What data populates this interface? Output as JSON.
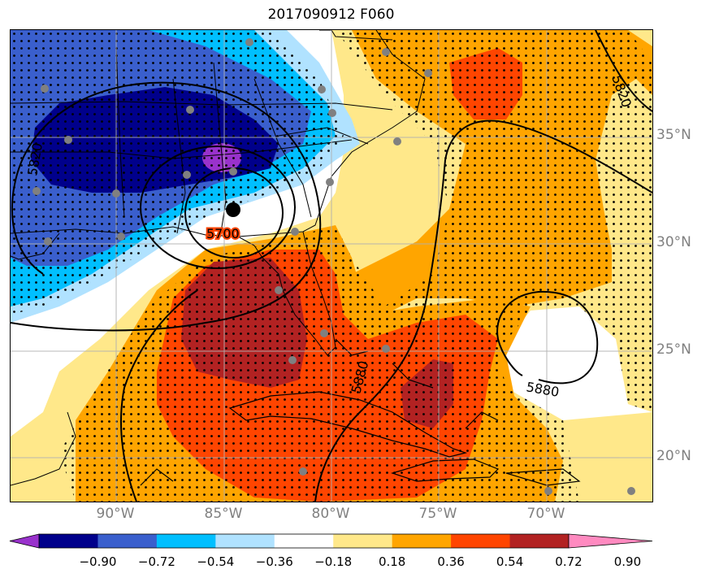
{
  "title": "2017090912 F060",
  "lat_labels": [
    "35°N",
    "30°N",
    "25°N",
    "20°N"
  ],
  "lon_labels": [
    "90°W",
    "85°W",
    "80°W",
    "75°W",
    "70°W"
  ],
  "contour_labels": [
    "5700",
    "5820",
    "5820",
    "5880",
    "5880"
  ],
  "colorbar": {
    "ticks": [
      "−0.90",
      "−0.72",
      "−0.54",
      "−0.36",
      "−0.18",
      "0.18",
      "0.36",
      "0.54",
      "0.72",
      "0.90"
    ],
    "colors": [
      "#9932CC",
      "#00008B",
      "#3A5FCD",
      "#00BFFF",
      "#B0E2FF",
      "#FFFFFF",
      "#FFE88A",
      "#FFA500",
      "#FF4500",
      "#B22222",
      "#FF8AC0"
    ]
  },
  "colors": {
    "dark_blue": "#00008B",
    "mid_blue": "#3A5FCD",
    "cyan": "#00BFFF",
    "light_blue": "#B0E2FF",
    "yellow": "#FFE88A",
    "orange": "#FFA500",
    "red_orange": "#FF4500",
    "dark_red": "#B22222",
    "purple": "#9932CC",
    "station_gray": "#808080"
  }
}
